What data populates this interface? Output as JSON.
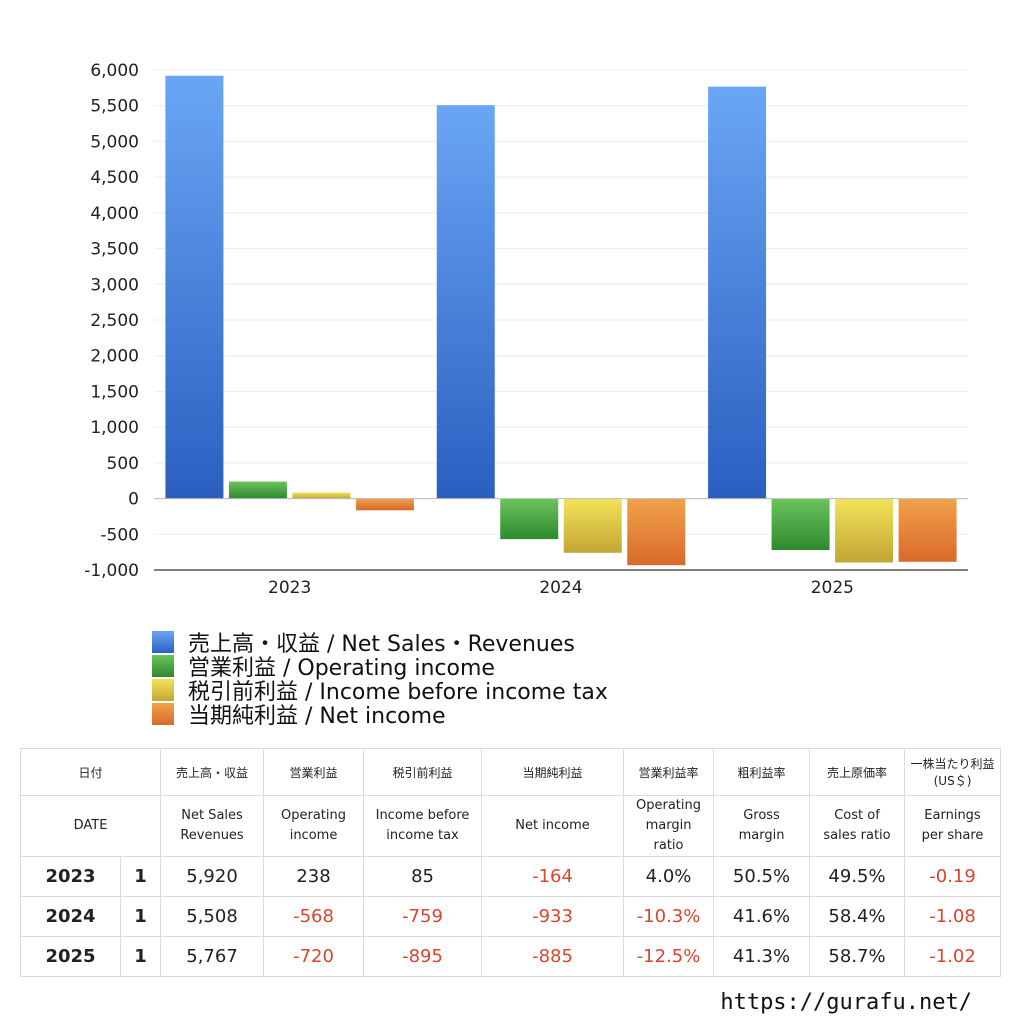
{
  "chart_data": {
    "type": "bar",
    "categories": [
      "2023",
      "2024",
      "2025"
    ],
    "series": [
      {
        "name": "売上高・収益 / Net Sales・Revenues",
        "values": [
          5920,
          5508,
          5767
        ],
        "color_top": "#6aa6f5",
        "color_bottom": "#2a5fc0"
      },
      {
        "name": "営業利益 / Operating income",
        "values": [
          238,
          -568,
          -720
        ],
        "color_top": "#6cc35c",
        "color_bottom": "#2e8a2e"
      },
      {
        "name": "税引前利益 / Income before income tax",
        "values": [
          85,
          -759,
          -895
        ],
        "color_top": "#f3e35a",
        "color_bottom": "#c2a634"
      },
      {
        "name": "当期純利益 / Net income",
        "values": [
          -164,
          -933,
          -885
        ],
        "color_top": "#f1a24a",
        "color_bottom": "#d8692a"
      }
    ],
    "ylim": [
      -1000,
      6000
    ],
    "yticks": [
      "6,000",
      "5,500",
      "5,000",
      "4,500",
      "4,000",
      "3,500",
      "3,000",
      "2,500",
      "2,000",
      "1,500",
      "1,000",
      "500",
      "0",
      "-500",
      "-1,000"
    ],
    "grid": true,
    "legend_position": "bottom-left"
  },
  "table": {
    "header_jp": [
      "日付",
      "",
      "売上高・収益",
      "営業利益",
      "税引前利益",
      "当期純利益",
      "営業利益率",
      "粗利益率",
      "売上原価率",
      "一株当たり利益\n(US＄)"
    ],
    "header_en": [
      "DATE",
      "",
      "Net Sales\nRevenues",
      "Operating\nincome",
      "Income before\nincome tax",
      "Net income",
      "Operating\nmargin\nratio",
      "Gross\nmargin",
      "Cost of\nsales ratio",
      "Earnings\nper share"
    ],
    "rows": [
      [
        "2023",
        "1",
        "5,920",
        "238",
        "85",
        "-164",
        "4.0%",
        "50.5%",
        "49.5%",
        "-0.19"
      ],
      [
        "2024",
        "1",
        "5,508",
        "-568",
        "-759",
        "-933",
        "-10.3%",
        "41.6%",
        "58.4%",
        "-1.08"
      ],
      [
        "2025",
        "1",
        "5,767",
        "-720",
        "-895",
        "-885",
        "-12.5%",
        "41.3%",
        "58.7%",
        "-1.02"
      ]
    ]
  },
  "footer": {
    "url": "https://gurafu.net/"
  }
}
